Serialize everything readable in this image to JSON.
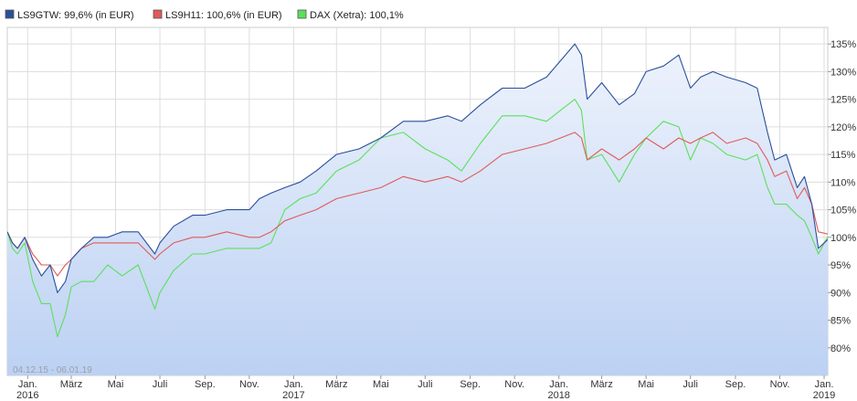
{
  "chart_data": {
    "type": "line",
    "date_range_label": "04.12.15 - 06.01.19",
    "legend": [
      {
        "key": "s1",
        "label": "LS9GTW: 99,6% (in EUR)",
        "color": "#2b4f9a"
      },
      {
        "key": "s2",
        "label": "LS9H11: 100,6% (in EUR)",
        "color": "#e05a5a"
      },
      {
        "key": "s3",
        "label": "DAX (Xetra): 100,1%",
        "color": "#5be05b"
      }
    ],
    "x_range": [
      "2015-12-04",
      "2019-01-06"
    ],
    "ylim": [
      75,
      138
    ],
    "yticks": [
      {
        "v": 80,
        "label": "80%"
      },
      {
        "v": 85,
        "label": "85%"
      },
      {
        "v": 90,
        "label": "90%"
      },
      {
        "v": 95,
        "label": "95%"
      },
      {
        "v": 100,
        "label": "100%"
      },
      {
        "v": 105,
        "label": "105%"
      },
      {
        "v": 110,
        "label": "110%"
      },
      {
        "v": 115,
        "label": "115%"
      },
      {
        "v": 120,
        "label": "120%"
      },
      {
        "v": 125,
        "label": "125%"
      },
      {
        "v": 130,
        "label": "130%"
      },
      {
        "v": 135,
        "label": "135%"
      }
    ],
    "xticks": [
      {
        "date": "2016-01-01",
        "label": "Jan.",
        "year": "2016"
      },
      {
        "date": "2016-03-01",
        "label": "März"
      },
      {
        "date": "2016-05-01",
        "label": "Mai"
      },
      {
        "date": "2016-07-01",
        "label": "Juli"
      },
      {
        "date": "2016-09-01",
        "label": "Sep."
      },
      {
        "date": "2016-11-01",
        "label": "Nov."
      },
      {
        "date": "2017-01-01",
        "label": "Jan.",
        "year": "2017"
      },
      {
        "date": "2017-03-01",
        "label": "März"
      },
      {
        "date": "2017-05-01",
        "label": "Mai"
      },
      {
        "date": "2017-07-01",
        "label": "Juli"
      },
      {
        "date": "2017-09-01",
        "label": "Sep."
      },
      {
        "date": "2017-11-01",
        "label": "Nov."
      },
      {
        "date": "2018-01-01",
        "label": "Jan.",
        "year": "2018"
      },
      {
        "date": "2018-03-01",
        "label": "März"
      },
      {
        "date": "2018-05-01",
        "label": "Mai"
      },
      {
        "date": "2018-07-01",
        "label": "Juli"
      },
      {
        "date": "2018-09-01",
        "label": "Sep."
      },
      {
        "date": "2018-11-01",
        "label": "Nov."
      },
      {
        "date": "2019-01-01",
        "label": "Jan.",
        "year": "2019"
      }
    ],
    "series": [
      {
        "key": "s1",
        "name": "LS9GTW",
        "color": "#2b4f9a",
        "points": [
          [
            "2015-12-04",
            101
          ],
          [
            "2015-12-11",
            99
          ],
          [
            "2015-12-18",
            98
          ],
          [
            "2015-12-28",
            100
          ],
          [
            "2016-01-08",
            96
          ],
          [
            "2016-01-20",
            93
          ],
          [
            "2016-02-01",
            95
          ],
          [
            "2016-02-11",
            90
          ],
          [
            "2016-02-22",
            92
          ],
          [
            "2016-03-01",
            96
          ],
          [
            "2016-03-15",
            98
          ],
          [
            "2016-04-01",
            100
          ],
          [
            "2016-04-20",
            100
          ],
          [
            "2016-05-10",
            101
          ],
          [
            "2016-06-01",
            101
          ],
          [
            "2016-06-24",
            97
          ],
          [
            "2016-07-01",
            99
          ],
          [
            "2016-07-20",
            102
          ],
          [
            "2016-08-15",
            104
          ],
          [
            "2016-09-01",
            104
          ],
          [
            "2016-10-01",
            105
          ],
          [
            "2016-11-01",
            105
          ],
          [
            "2016-11-15",
            107
          ],
          [
            "2016-12-01",
            108
          ],
          [
            "2016-12-20",
            109
          ],
          [
            "2017-01-10",
            110
          ],
          [
            "2017-02-01",
            112
          ],
          [
            "2017-03-01",
            115
          ],
          [
            "2017-04-01",
            116
          ],
          [
            "2017-05-01",
            118
          ],
          [
            "2017-06-01",
            121
          ],
          [
            "2017-07-01",
            121
          ],
          [
            "2017-08-01",
            122
          ],
          [
            "2017-08-20",
            121
          ],
          [
            "2017-09-15",
            124
          ],
          [
            "2017-10-15",
            127
          ],
          [
            "2017-11-15",
            127
          ],
          [
            "2017-12-15",
            129
          ],
          [
            "2018-01-23",
            135
          ],
          [
            "2018-02-01",
            133
          ],
          [
            "2018-02-09",
            125
          ],
          [
            "2018-03-01",
            128
          ],
          [
            "2018-03-25",
            124
          ],
          [
            "2018-04-15",
            126
          ],
          [
            "2018-05-01",
            130
          ],
          [
            "2018-05-25",
            131
          ],
          [
            "2018-06-15",
            133
          ],
          [
            "2018-07-01",
            127
          ],
          [
            "2018-07-15",
            129
          ],
          [
            "2018-08-01",
            130
          ],
          [
            "2018-08-20",
            129
          ],
          [
            "2018-09-15",
            128
          ],
          [
            "2018-10-01",
            127
          ],
          [
            "2018-10-15",
            119
          ],
          [
            "2018-10-25",
            114
          ],
          [
            "2018-11-10",
            115
          ],
          [
            "2018-11-25",
            109
          ],
          [
            "2018-12-05",
            111
          ],
          [
            "2018-12-15",
            106
          ],
          [
            "2018-12-24",
            98
          ],
          [
            "2019-01-06",
            99.6
          ]
        ]
      },
      {
        "key": "s2",
        "name": "LS9H11",
        "color": "#e05a5a",
        "points": [
          [
            "2015-12-04",
            101
          ],
          [
            "2015-12-11",
            99
          ],
          [
            "2015-12-18",
            98
          ],
          [
            "2015-12-28",
            100
          ],
          [
            "2016-01-08",
            97
          ],
          [
            "2016-01-20",
            95
          ],
          [
            "2016-02-01",
            95
          ],
          [
            "2016-02-11",
            93
          ],
          [
            "2016-02-22",
            95
          ],
          [
            "2016-03-01",
            96
          ],
          [
            "2016-03-15",
            98
          ],
          [
            "2016-04-01",
            99
          ],
          [
            "2016-04-20",
            99
          ],
          [
            "2016-05-10",
            99
          ],
          [
            "2016-06-01",
            99
          ],
          [
            "2016-06-24",
            96
          ],
          [
            "2016-07-01",
            97
          ],
          [
            "2016-07-20",
            99
          ],
          [
            "2016-08-15",
            100
          ],
          [
            "2016-09-01",
            100
          ],
          [
            "2016-10-01",
            101
          ],
          [
            "2016-11-01",
            100
          ],
          [
            "2016-11-15",
            100
          ],
          [
            "2016-12-01",
            101
          ],
          [
            "2016-12-20",
            103
          ],
          [
            "2017-01-10",
            104
          ],
          [
            "2017-02-01",
            105
          ],
          [
            "2017-03-01",
            107
          ],
          [
            "2017-04-01",
            108
          ],
          [
            "2017-05-01",
            109
          ],
          [
            "2017-06-01",
            111
          ],
          [
            "2017-07-01",
            110
          ],
          [
            "2017-08-01",
            111
          ],
          [
            "2017-08-20",
            110
          ],
          [
            "2017-09-15",
            112
          ],
          [
            "2017-10-15",
            115
          ],
          [
            "2017-11-15",
            116
          ],
          [
            "2017-12-15",
            117
          ],
          [
            "2018-01-23",
            119
          ],
          [
            "2018-02-01",
            118
          ],
          [
            "2018-02-09",
            114
          ],
          [
            "2018-03-01",
            116
          ],
          [
            "2018-03-25",
            114
          ],
          [
            "2018-04-15",
            116
          ],
          [
            "2018-05-01",
            118
          ],
          [
            "2018-05-25",
            116
          ],
          [
            "2018-06-15",
            118
          ],
          [
            "2018-07-01",
            117
          ],
          [
            "2018-07-15",
            118
          ],
          [
            "2018-08-01",
            119
          ],
          [
            "2018-08-20",
            117
          ],
          [
            "2018-09-15",
            118
          ],
          [
            "2018-10-01",
            117
          ],
          [
            "2018-10-15",
            114
          ],
          [
            "2018-10-25",
            111
          ],
          [
            "2018-11-10",
            112
          ],
          [
            "2018-11-25",
            107
          ],
          [
            "2018-12-05",
            109
          ],
          [
            "2018-12-15",
            106
          ],
          [
            "2018-12-24",
            101
          ],
          [
            "2019-01-06",
            100.6
          ]
        ]
      },
      {
        "key": "s3",
        "name": "DAX (Xetra)",
        "color": "#5be05b",
        "points": [
          [
            "2015-12-04",
            101
          ],
          [
            "2015-12-11",
            98
          ],
          [
            "2015-12-18",
            97
          ],
          [
            "2015-12-28",
            99
          ],
          [
            "2016-01-08",
            92
          ],
          [
            "2016-01-20",
            88
          ],
          [
            "2016-02-01",
            88
          ],
          [
            "2016-02-11",
            82
          ],
          [
            "2016-02-22",
            86
          ],
          [
            "2016-03-01",
            91
          ],
          [
            "2016-03-15",
            92
          ],
          [
            "2016-04-01",
            92
          ],
          [
            "2016-04-20",
            95
          ],
          [
            "2016-05-10",
            93
          ],
          [
            "2016-06-01",
            95
          ],
          [
            "2016-06-24",
            87
          ],
          [
            "2016-07-01",
            90
          ],
          [
            "2016-07-20",
            94
          ],
          [
            "2016-08-15",
            97
          ],
          [
            "2016-09-01",
            97
          ],
          [
            "2016-10-01",
            98
          ],
          [
            "2016-11-01",
            98
          ],
          [
            "2016-11-15",
            98
          ],
          [
            "2016-12-01",
            99
          ],
          [
            "2016-12-20",
            105
          ],
          [
            "2017-01-10",
            107
          ],
          [
            "2017-02-01",
            108
          ],
          [
            "2017-03-01",
            112
          ],
          [
            "2017-04-01",
            114
          ],
          [
            "2017-05-01",
            118
          ],
          [
            "2017-06-01",
            119
          ],
          [
            "2017-07-01",
            116
          ],
          [
            "2017-08-01",
            114
          ],
          [
            "2017-08-20",
            112
          ],
          [
            "2017-09-15",
            117
          ],
          [
            "2017-10-15",
            122
          ],
          [
            "2017-11-15",
            122
          ],
          [
            "2017-12-15",
            121
          ],
          [
            "2018-01-23",
            125
          ],
          [
            "2018-02-01",
            123
          ],
          [
            "2018-02-09",
            114
          ],
          [
            "2018-03-01",
            115
          ],
          [
            "2018-03-25",
            110
          ],
          [
            "2018-04-15",
            115
          ],
          [
            "2018-05-01",
            118
          ],
          [
            "2018-05-25",
            121
          ],
          [
            "2018-06-15",
            120
          ],
          [
            "2018-07-01",
            114
          ],
          [
            "2018-07-15",
            118
          ],
          [
            "2018-08-01",
            117
          ],
          [
            "2018-08-20",
            115
          ],
          [
            "2018-09-15",
            114
          ],
          [
            "2018-10-01",
            115
          ],
          [
            "2018-10-15",
            109
          ],
          [
            "2018-10-25",
            106
          ],
          [
            "2018-11-10",
            106
          ],
          [
            "2018-11-25",
            104
          ],
          [
            "2018-12-05",
            103
          ],
          [
            "2018-12-15",
            100
          ],
          [
            "2018-12-24",
            97
          ],
          [
            "2019-01-06",
            100.1
          ]
        ]
      }
    ]
  }
}
